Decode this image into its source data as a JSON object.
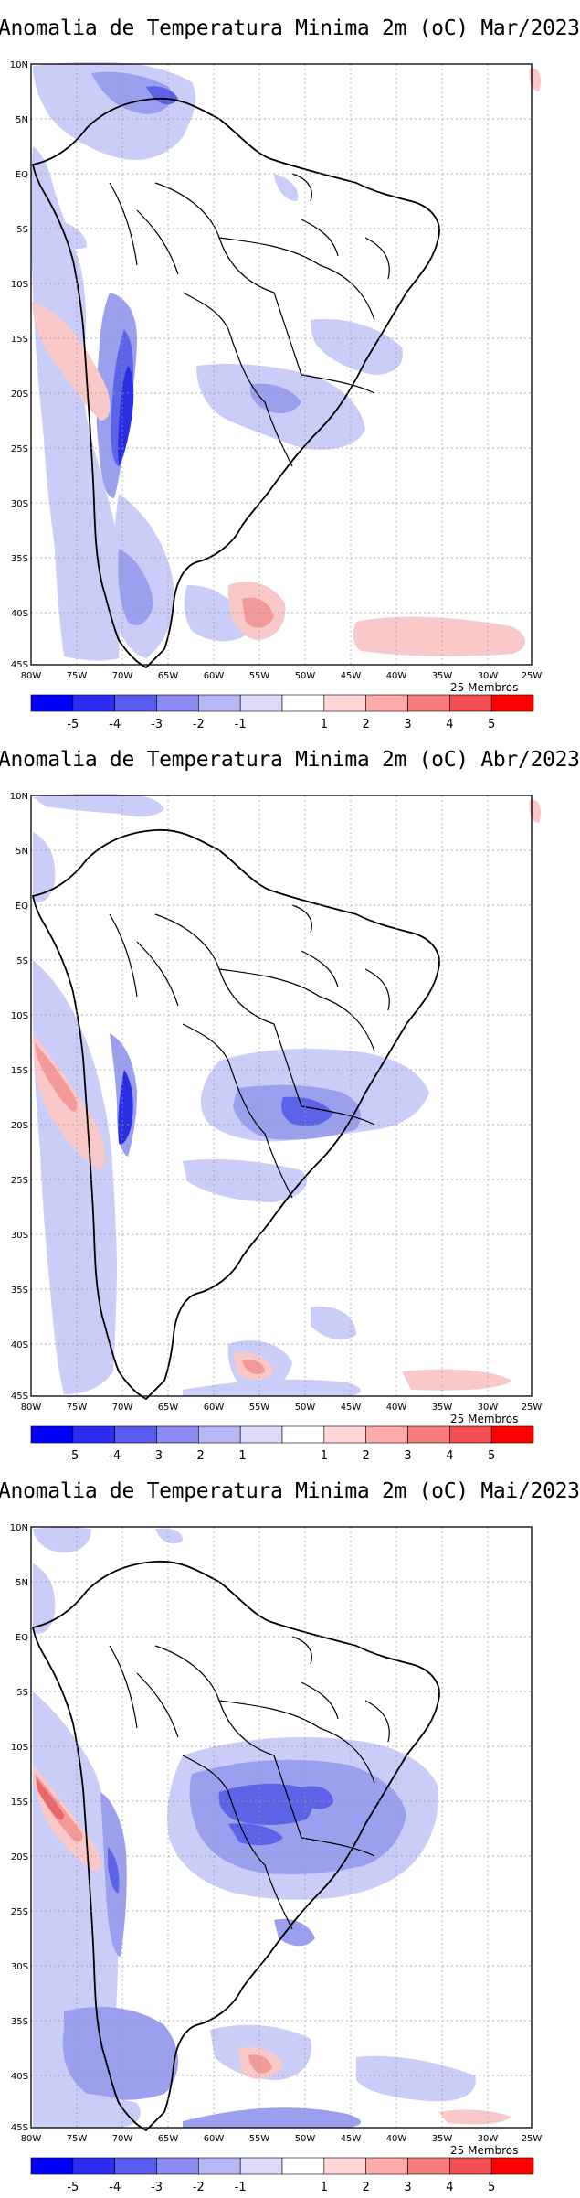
{
  "panels": [
    {
      "title": "Anomalia de Temperatura Minima 2m (oC) Mar/2023",
      "members_label": "25 Membros"
    },
    {
      "title": "Anomalia de Temperatura Minima 2m (oC) Abr/2023",
      "members_label": "25 Membros"
    },
    {
      "title": "Anomalia de Temperatura Minima 2m (oC) Mai/2023",
      "members_label": "25 Membros"
    }
  ],
  "lat_labels": [
    "10N",
    "5N",
    "EQ",
    "5S",
    "10S",
    "15S",
    "20S",
    "25S",
    "30S",
    "35S",
    "40S",
    "45S"
  ],
  "lon_labels": [
    "80W",
    "75W",
    "70W",
    "65W",
    "60W",
    "55W",
    "50W",
    "45W",
    "40W",
    "35W",
    "30W",
    "25W"
  ],
  "colorbar": {
    "labels": [
      "-5",
      "-4",
      "-3",
      "-2",
      "-1",
      "1",
      "2",
      "3",
      "4",
      "5"
    ],
    "colors": [
      "#0000ff",
      "#2b2bf2",
      "#5a5aee",
      "#8a8af0",
      "#b7b7f5",
      "#dcdcfa",
      "#ffffff",
      "#ffd6d6",
      "#ffaaaa",
      "#f77d7d",
      "#f25050",
      "#ff0000"
    ]
  },
  "colors": {
    "cold_light": "#c9cdf7",
    "cold_mid": "#9aa0ee",
    "cold_dark": "#5d63e6",
    "cold_darkest": "#2a2ee0",
    "warm_light": "#f9c8c8",
    "warm_mid": "#f29a9a",
    "warm_dark": "#e86868"
  }
}
